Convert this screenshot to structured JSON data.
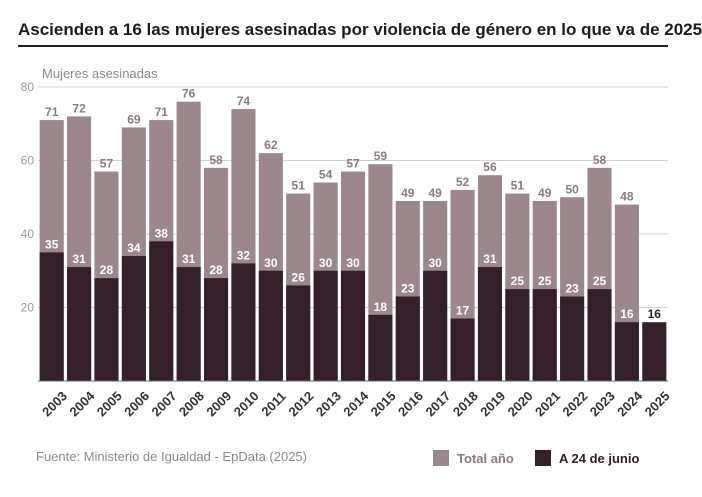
{
  "title": "Ascienden a 16 las mujeres asesinadas por violencia de género en lo que va de 2025",
  "source": "Fuente: Ministerio de Igualdad - EpData (2025)",
  "colors": {
    "total": "#9b878c",
    "june": "#33202a",
    "grid": "#d0d0d0",
    "label_total": "#8c7a80"
  },
  "chart_data": {
    "type": "bar",
    "ylabel": "Mujeres asesinadas",
    "ylim": [
      0,
      80
    ],
    "yticks": [
      20,
      40,
      60,
      80
    ],
    "grid": true,
    "legend_placement": "bottom-right",
    "categories": [
      "2003",
      "2004",
      "2005",
      "2006",
      "2007",
      "2008",
      "2009",
      "2010",
      "2011",
      "2012",
      "2013",
      "2014",
      "2015",
      "2016",
      "2017",
      "2018",
      "2019",
      "2020",
      "2021",
      "2022",
      "2023",
      "2024",
      "2025"
    ],
    "series": [
      {
        "name": "Total año",
        "values": [
          71,
          72,
          57,
          69,
          71,
          76,
          58,
          74,
          62,
          51,
          54,
          57,
          59,
          49,
          49,
          52,
          56,
          51,
          49,
          50,
          58,
          48,
          null
        ]
      },
      {
        "name": "A 24 de junio",
        "values": [
          35,
          31,
          28,
          34,
          38,
          31,
          28,
          32,
          30,
          26,
          30,
          30,
          18,
          23,
          30,
          17,
          31,
          25,
          25,
          23,
          25,
          16,
          16
        ]
      }
    ]
  }
}
